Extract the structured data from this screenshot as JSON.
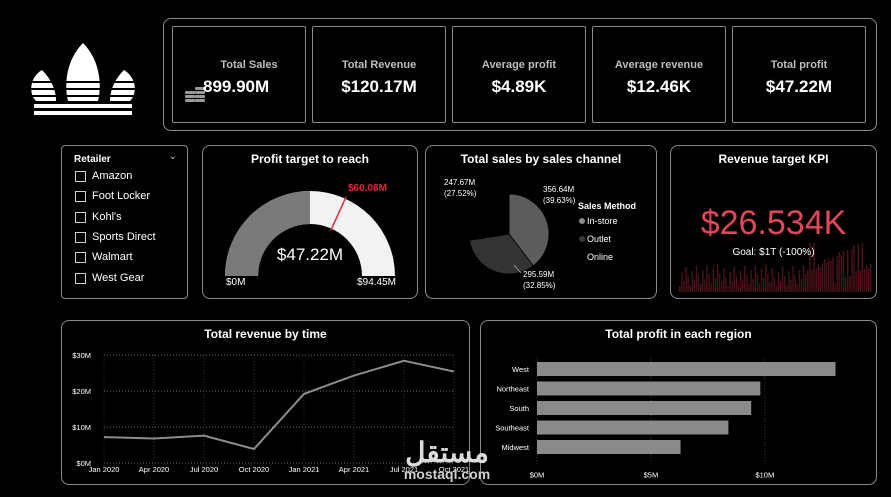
{
  "brand": {
    "logo": "three-stripe trefoil logo"
  },
  "kpis": [
    {
      "label": "Total Sales",
      "value": "899.90M",
      "icon": "coins-icon"
    },
    {
      "label": "Total Revenue",
      "value": "$120.17M"
    },
    {
      "label": "Average profit",
      "value": "$4.89K"
    },
    {
      "label": "Average revenue",
      "value": "$12.46K"
    },
    {
      "label": "Total profit",
      "value": "$47.22M"
    }
  ],
  "slicer": {
    "title": "Retailer",
    "items": [
      "Amazon",
      "Foot Locker",
      "Kohl's",
      "Sports Direct",
      "Walmart",
      "West Gear"
    ]
  },
  "gauge": {
    "title": "Profit target to reach",
    "value": 47.22,
    "value_label": "$47.22M",
    "min_label": "$0M",
    "max_label": "$94.45M",
    "target_label": "$60.08M",
    "min": 0,
    "max": 94.45,
    "target": 60.08
  },
  "channel": {
    "title": "Total sales by sales channel",
    "legend_title": "Sales Method",
    "slices": [
      {
        "name": "In-store",
        "value": 356.64,
        "label1": "356.64M",
        "label2": "(39.63%)",
        "color": "#5c5c5c"
      },
      {
        "name": "Outlet",
        "value": 295.59,
        "label1": "295.59M",
        "label2": "(32.85%)",
        "color": "#333333"
      },
      {
        "name": "Online",
        "value": 247.67,
        "label1": "247.67M",
        "label2": "(27.52%)",
        "color": "#000000"
      }
    ]
  },
  "revenue_kpi": {
    "title": "Revenue target KPI",
    "value": "$26.534K",
    "goal": "Goal: $1T (-100%)",
    "color": "#e3465b"
  },
  "chart_data": [
    {
      "type": "line",
      "title": "Total revenue by time",
      "x": [
        "Jan 2020",
        "Apr 2020",
        "Jul 2020",
        "Oct 2020",
        "Jan 2021",
        "Apr 2021",
        "Jul 2021",
        "Oct 2021"
      ],
      "y": [
        7.2,
        6.8,
        7.6,
        3.9,
        19.2,
        24.3,
        28.4,
        25.4
      ],
      "yticks": [
        "$0M",
        "$10M",
        "$20M",
        "$30M"
      ],
      "ylim": [
        0,
        30
      ],
      "xlabel": "",
      "ylabel": "",
      "grid": true,
      "line_color": "#8c8c8c"
    },
    {
      "type": "bar",
      "title": "Total profit in each region",
      "orientation": "horizontal",
      "categories": [
        "West",
        "Northeast",
        "South",
        "Southeast",
        "Midwest"
      ],
      "values": [
        13.1,
        9.8,
        9.4,
        8.4,
        6.3
      ],
      "xticks": [
        "$0M",
        "$5M",
        "$10M"
      ],
      "xlim": [
        0,
        14
      ],
      "bar_color": "#8a8a8a"
    }
  ],
  "watermark": {
    "arabic": "مستقل",
    "latin": "mostaql.com"
  }
}
